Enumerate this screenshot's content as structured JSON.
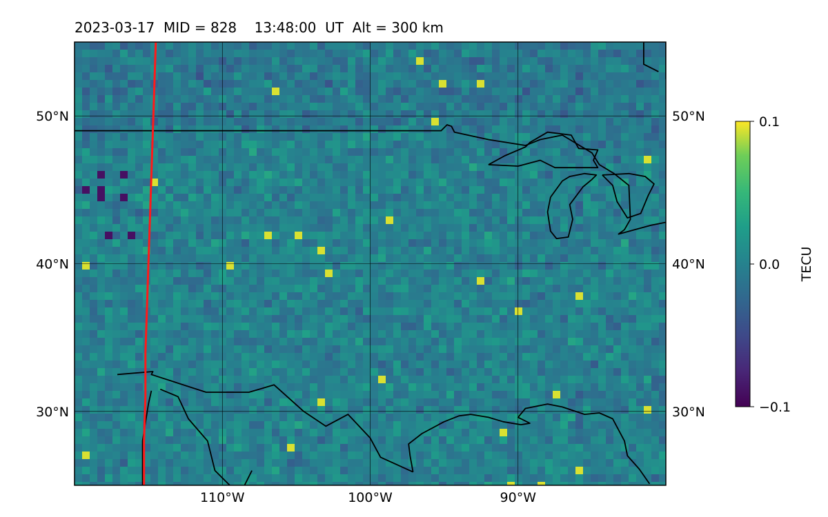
{
  "title": "2023-03-17  MID = 828    13:48:00  UT  Alt = 300 km",
  "map": {
    "lat_range": [
      25,
      55
    ],
    "lon_range": [
      -120,
      -80
    ],
    "grid_lats": [
      30,
      40,
      50
    ],
    "grid_lons": [
      -110,
      -100,
      -90
    ],
    "lat_labels": [
      "30°N",
      "40°N",
      "50°N"
    ],
    "lon_labels": [
      "110°W",
      "100°W",
      "90°W"
    ],
    "colormap": "viridis",
    "mean_color": "#2f7f86",
    "border_color": "#000000",
    "terminator_color": "#ff1a1a",
    "terminator_lonlat": [
      [
        -114.5,
        55
      ],
      [
        -114.6,
        52
      ],
      [
        -114.7,
        49
      ],
      [
        -114.8,
        46
      ],
      [
        -114.9,
        43
      ],
      [
        -115.0,
        40
      ],
      [
        -115.1,
        37
      ],
      [
        -115.2,
        34
      ],
      [
        -115.2,
        31
      ],
      [
        -115.3,
        28
      ],
      [
        -115.3,
        25
      ]
    ],
    "layers": {
      "coastlines": {
        "hudson_bay_east": [
          [
            -81.5,
            55
          ],
          [
            -81.5,
            53.5
          ],
          [
            -80.5,
            53
          ]
        ],
        "james_bay": [
          [
            -80,
            55
          ],
          [
            -80,
            52.5
          ]
        ],
        "us_canada_border": [
          [
            -120,
            49
          ],
          [
            -95.2,
            49
          ],
          [
            -94.8,
            49.4
          ],
          [
            -94.5,
            49.3
          ],
          [
            -94.3,
            48.9
          ],
          [
            -92,
            48.4
          ],
          [
            -89.5,
            48
          ],
          [
            -88.5,
            48.4
          ],
          [
            -87,
            48.7
          ],
          [
            -85,
            47.5
          ],
          [
            -84.5,
            46.7
          ],
          [
            -83.5,
            46.1
          ],
          [
            -82.5,
            45.3
          ],
          [
            -82.4,
            43
          ],
          [
            -82.8,
            42.3
          ],
          [
            -83.2,
            42
          ],
          [
            -81,
            42.6
          ],
          [
            -80,
            42.8
          ]
        ],
        "lake_superior": [
          [
            -92,
            46.7
          ],
          [
            -90,
            46.6
          ],
          [
            -88.5,
            47
          ],
          [
            -87.5,
            46.5
          ],
          [
            -86,
            46.5
          ],
          [
            -84.6,
            46.5
          ],
          [
            -84.9,
            47
          ],
          [
            -84.6,
            47.7
          ],
          [
            -85.9,
            47.8
          ],
          [
            -86.4,
            48.7
          ],
          [
            -88,
            48.9
          ],
          [
            -89.2,
            48.2
          ],
          [
            -89.5,
            47.9
          ],
          [
            -90.9,
            47.3
          ],
          [
            -92,
            46.7
          ]
        ],
        "lake_michigan": [
          [
            -87.8,
            44.5
          ],
          [
            -88,
            43.5
          ],
          [
            -87.8,
            42.2
          ],
          [
            -87.4,
            41.7
          ],
          [
            -86.6,
            41.8
          ],
          [
            -86.3,
            43
          ],
          [
            -86.5,
            44
          ],
          [
            -85.6,
            45.2
          ],
          [
            -85.0,
            45.7
          ],
          [
            -84.7,
            46
          ],
          [
            -85.5,
            46.1
          ],
          [
            -86.5,
            45.9
          ],
          [
            -87,
            45.6
          ],
          [
            -87.8,
            44.5
          ]
        ],
        "lake_huron": [
          [
            -84.3,
            46
          ],
          [
            -83.6,
            45.3
          ],
          [
            -83.3,
            44.2
          ],
          [
            -82.6,
            43.1
          ],
          [
            -81.7,
            43.4
          ],
          [
            -81.2,
            44.6
          ],
          [
            -80.8,
            45.4
          ],
          [
            -81.4,
            45.9
          ],
          [
            -82.5,
            46.1
          ],
          [
            -84.3,
            46
          ]
        ],
        "gulf_coast": [
          [
            -97.1,
            25.9
          ],
          [
            -97.3,
            27
          ],
          [
            -97.4,
            27.8
          ],
          [
            -96.5,
            28.5
          ],
          [
            -95,
            29.3
          ],
          [
            -94,
            29.7
          ],
          [
            -93.2,
            29.8
          ],
          [
            -92,
            29.6
          ],
          [
            -91,
            29.3
          ],
          [
            -89.8,
            29.1
          ],
          [
            -89.2,
            29.2
          ],
          [
            -90,
            29.6
          ],
          [
            -89.5,
            30.2
          ],
          [
            -88,
            30.5
          ],
          [
            -87,
            30.3
          ],
          [
            -85.5,
            29.8
          ],
          [
            -84.5,
            29.9
          ],
          [
            -83.6,
            29.5
          ],
          [
            -82.8,
            28
          ],
          [
            -82.6,
            27
          ],
          [
            -81.8,
            26.1
          ],
          [
            -81.1,
            25.1
          ]
        ],
        "baja_california": [
          [
            -115.4,
            25
          ],
          [
            -115.4,
            28
          ],
          [
            -115.0,
            30.5
          ],
          [
            -114.8,
            31.4
          ]
        ],
        "gulf_of_california": [
          [
            -114.2,
            31.5
          ],
          [
            -113,
            31
          ],
          [
            -112.3,
            29.5
          ],
          [
            -111,
            28
          ],
          [
            -110.5,
            26
          ],
          [
            -109.5,
            25
          ]
        ],
        "mexico_pacific_coast": [
          [
            -108.5,
            25
          ],
          [
            -108,
            26
          ]
        ]
      },
      "borders": {
        "us_mexico": [
          [
            -117.1,
            32.5
          ],
          [
            -114.7,
            32.7
          ],
          [
            -114.8,
            32.5
          ],
          [
            -111.1,
            31.3
          ],
          [
            -108.2,
            31.3
          ],
          [
            -106.5,
            31.8
          ],
          [
            -104.5,
            30
          ],
          [
            -103,
            29
          ],
          [
            -101.5,
            29.8
          ],
          [
            -100,
            28.2
          ],
          [
            -99.3,
            26.9
          ],
          [
            -97.1,
            25.9
          ]
        ]
      }
    }
  },
  "colorbar": {
    "label": "TECU",
    "min": -0.1,
    "max": 0.1,
    "ticks": [
      0.1,
      0.0,
      -0.1
    ],
    "tick_labels": [
      "0.1",
      "0.0",
      "−0.1"
    ]
  }
}
